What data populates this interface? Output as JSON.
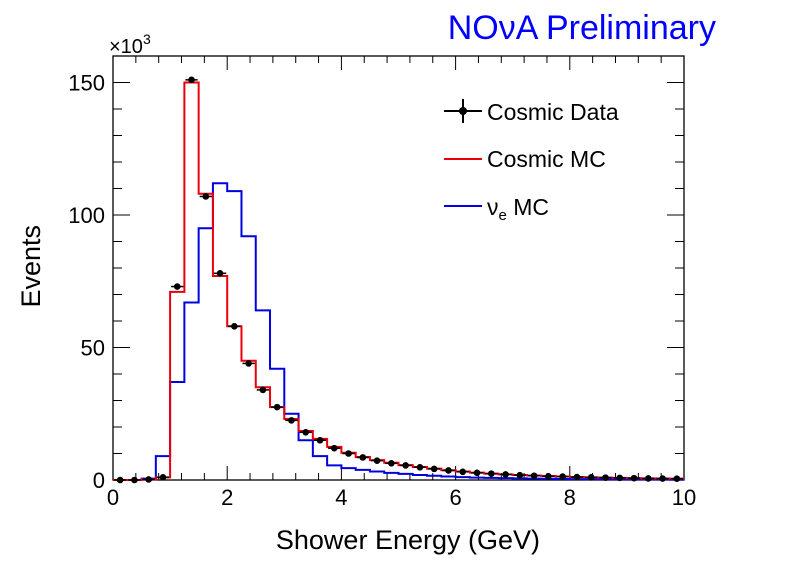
{
  "chart_data": {
    "type": "histogram",
    "title": "NOνA Preliminary",
    "xlabel": "Shower Energy (GeV)",
    "ylabel": "Events",
    "y_multiplier": "×10",
    "y_multiplier_exp": "3",
    "xlim": [
      0,
      10
    ],
    "ylim": [
      0,
      160
    ],
    "x_ticks": [
      0,
      2,
      4,
      6,
      8,
      10
    ],
    "y_ticks": [
      0,
      50,
      100,
      150
    ],
    "bin_edges": [
      0,
      0.25,
      0.5,
      0.75,
      1.0,
      1.25,
      1.5,
      1.75,
      2.0,
      2.25,
      2.5,
      2.75,
      3.0,
      3.25,
      3.5,
      3.75,
      4.0,
      4.25,
      4.5,
      4.75,
      5.0,
      5.25,
      5.5,
      5.75,
      6.0,
      6.25,
      6.5,
      6.75,
      7.0,
      7.25,
      7.5,
      7.75,
      8.0,
      8.25,
      8.5,
      8.75,
      9.0,
      9.25,
      9.5,
      9.75,
      10.0
    ],
    "series": [
      {
        "name": "Cosmic Data",
        "style": "points",
        "color": "#000000",
        "values": [
          0,
          0,
          0.2,
          1,
          73,
          151,
          107,
          78,
          58,
          44,
          34,
          27.5,
          22.5,
          18,
          15,
          12,
          10,
          8.5,
          7.3,
          6.3,
          5.5,
          4.8,
          4.2,
          3.6,
          3.1,
          2.7,
          2.4,
          2.1,
          1.8,
          1.6,
          1.4,
          1.3,
          1.1,
          1.0,
          0.9,
          0.8,
          0.7,
          0.6,
          0.55,
          0.5
        ]
      },
      {
        "name": "Cosmic MC",
        "style": "step",
        "color": "#e8000b",
        "values": [
          0,
          0,
          0.2,
          1,
          71,
          150,
          108,
          77,
          58,
          45,
          35,
          27.5,
          23,
          18.5,
          15.5,
          12.5,
          10.3,
          8.7,
          7.5,
          6.5,
          5.6,
          4.9,
          4.3,
          3.7,
          3.2,
          2.8,
          2.4,
          2.1,
          1.9,
          1.7,
          1.5,
          1.3,
          1.15,
          1.0,
          0.9,
          0.8,
          0.7,
          0.62,
          0.55,
          0.5
        ]
      },
      {
        "name": "νe MC",
        "legend_main": "ν",
        "legend_sub": "e",
        "legend_rest": " MC",
        "style": "step",
        "color": "#0000e0",
        "values": [
          0,
          0,
          0.5,
          9,
          37,
          67,
          95,
          112,
          109,
          92,
          64,
          42,
          25,
          15,
          9,
          5.5,
          4.5,
          3.8,
          3.2,
          2.7,
          2.3,
          1.9,
          1.6,
          1.3,
          1.1,
          0.9,
          0.8,
          0.7,
          0.6,
          0.5,
          0.45,
          0.4,
          0.35,
          0.3,
          0.28,
          0.25,
          0.22,
          0.2,
          0.18,
          0.15
        ]
      }
    ],
    "legend_position": "top-right"
  }
}
